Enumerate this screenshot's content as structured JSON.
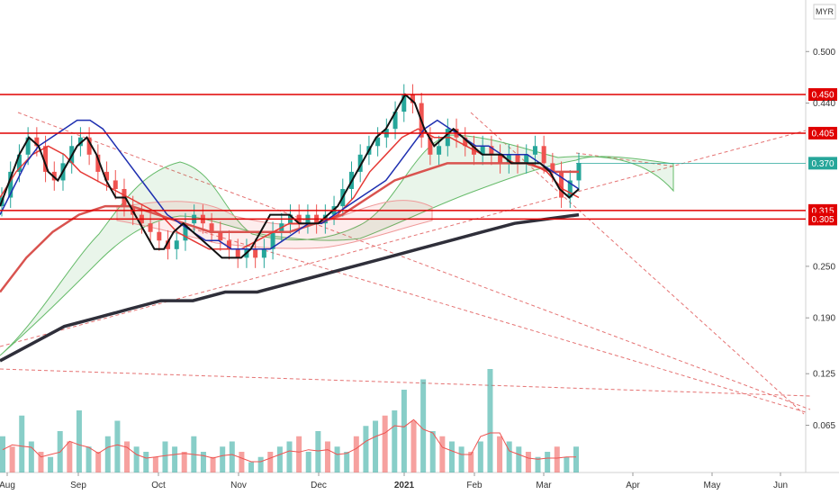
{
  "currency": "MYR",
  "chart_data": {
    "type": "candlestick",
    "y_ticks": [
      "0.500",
      "0.440",
      "0.250",
      "0.190",
      "0.125",
      "0.065"
    ],
    "y_tick_values": [
      0.5,
      0.44,
      0.25,
      0.19,
      0.125,
      0.065
    ],
    "x_ticks": [
      "Aug",
      "Sep",
      "Oct",
      "Nov",
      "Dec",
      "2021",
      "Feb",
      "Mar",
      "Apr",
      "May",
      "Jun"
    ],
    "x_tick_bold": [
      false,
      false,
      false,
      false,
      false,
      true,
      false,
      false,
      false,
      false,
      false
    ],
    "ylim": [
      0.01,
      0.56
    ],
    "horizontal_levels": [
      {
        "label": "0.450",
        "value": 0.45,
        "color": "#e00000"
      },
      {
        "label": "0.405",
        "value": 0.405,
        "color": "#e00000"
      },
      {
        "label": "0.315",
        "value": 0.315,
        "color": "#e00000"
      },
      {
        "label": "0.305",
        "value": 0.305,
        "color": "#e00000"
      }
    ],
    "current_price": {
      "label": "0.370",
      "value": 0.37,
      "color": "#26a69a"
    },
    "price_close": [
      0.33,
      0.36,
      0.38,
      0.4,
      0.39,
      0.36,
      0.35,
      0.37,
      0.39,
      0.4,
      0.38,
      0.36,
      0.35,
      0.34,
      0.32,
      0.31,
      0.3,
      0.29,
      0.28,
      0.27,
      0.28,
      0.3,
      0.31,
      0.3,
      0.29,
      0.28,
      0.27,
      0.26,
      0.27,
      0.26,
      0.27,
      0.29,
      0.3,
      0.31,
      0.3,
      0.31,
      0.3,
      0.31,
      0.32,
      0.34,
      0.36,
      0.38,
      0.39,
      0.4,
      0.41,
      0.43,
      0.45,
      0.44,
      0.4,
      0.38,
      0.39,
      0.41,
      0.4,
      0.39,
      0.38,
      0.39,
      0.38,
      0.37,
      0.38,
      0.37,
      0.38,
      0.39,
      0.37,
      0.36,
      0.33,
      0.35,
      0.37
    ],
    "ma_black": [
      0.32,
      0.35,
      0.38,
      0.4,
      0.39,
      0.36,
      0.35,
      0.37,
      0.39,
      0.4,
      0.38,
      0.35,
      0.33,
      0.33,
      0.31,
      0.29,
      0.27,
      0.27,
      0.29,
      0.3,
      0.29,
      0.28,
      0.27,
      0.26,
      0.26,
      0.26,
      0.27,
      0.29,
      0.31,
      0.31,
      0.31,
      0.3,
      0.3,
      0.3,
      0.31,
      0.32,
      0.34,
      0.36,
      0.38,
      0.4,
      0.41,
      0.43,
      0.45,
      0.44,
      0.41,
      0.39,
      0.4,
      0.41,
      0.4,
      0.39,
      0.38,
      0.38,
      0.38,
      0.37,
      0.37,
      0.37,
      0.37,
      0.36,
      0.34,
      0.33,
      0.34
    ],
    "ma_blue": [
      0.31,
      0.34,
      0.37,
      0.39,
      0.4,
      0.41,
      0.42,
      0.42,
      0.41,
      0.39,
      0.37,
      0.35,
      0.33,
      0.31,
      0.3,
      0.29,
      0.28,
      0.28,
      0.27,
      0.27,
      0.27,
      0.27,
      0.28,
      0.29,
      0.3,
      0.3,
      0.31,
      0.32,
      0.33,
      0.34,
      0.35,
      0.37,
      0.39,
      0.41,
      0.42,
      0.41,
      0.4,
      0.39,
      0.39,
      0.38,
      0.38,
      0.38,
      0.37,
      0.36,
      0.35,
      0.34
    ],
    "ma_red_thin": [
      0.33,
      0.36,
      0.38,
      0.39,
      0.38,
      0.36,
      0.35,
      0.34,
      0.33,
      0.32,
      0.31,
      0.29,
      0.28,
      0.27,
      0.27,
      0.27,
      0.28,
      0.29,
      0.3,
      0.3,
      0.3,
      0.31,
      0.33,
      0.36,
      0.38,
      0.4,
      0.41,
      0.4,
      0.4,
      0.39,
      0.38,
      0.38,
      0.37,
      0.37,
      0.36,
      0.34,
      0.33
    ],
    "ma_red_mid": [
      0.22,
      0.26,
      0.29,
      0.31,
      0.32,
      0.32,
      0.31,
      0.3,
      0.29,
      0.29,
      0.29,
      0.29,
      0.3,
      0.31,
      0.33,
      0.35,
      0.36,
      0.37,
      0.37,
      0.37,
      0.37,
      0.36,
      0.36
    ],
    "ma_dark_long": [
      0.14,
      0.16,
      0.18,
      0.19,
      0.2,
      0.21,
      0.21,
      0.22,
      0.22,
      0.23,
      0.24,
      0.25,
      0.26,
      0.27,
      0.28,
      0.29,
      0.3,
      0.305,
      0.31
    ],
    "volume": [
      0.35,
      0.25,
      0.55,
      0.3,
      0.2,
      0.15,
      0.4,
      0.3,
      0.6,
      0.25,
      0.2,
      0.35,
      0.5,
      0.3,
      0.25,
      0.2,
      0.15,
      0.3,
      0.25,
      0.2,
      0.35,
      0.2,
      0.15,
      0.25,
      0.3,
      0.2,
      0.1,
      0.15,
      0.2,
      0.25,
      0.3,
      0.35,
      0.2,
      0.4,
      0.3,
      0.25,
      0.2,
      0.35,
      0.45,
      0.5,
      0.55,
      0.6,
      0.8,
      0.5,
      0.9,
      0.4,
      0.35,
      0.3,
      0.25,
      0.2,
      0.3,
      1.0,
      0.35,
      0.3,
      0.25,
      0.2,
      0.15,
      0.2,
      0.25,
      0.15,
      0.25
    ]
  }
}
